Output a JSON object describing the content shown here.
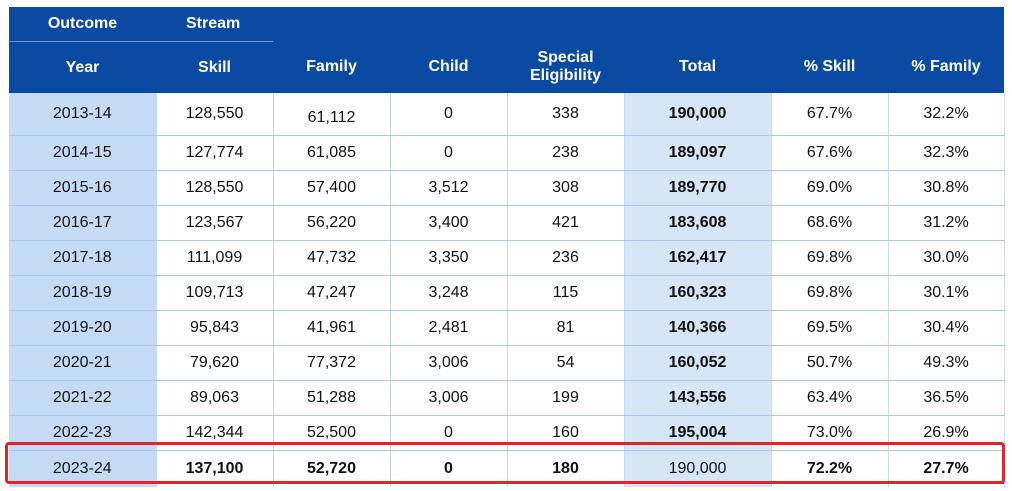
{
  "header": {
    "outcome": "Outcome",
    "stream": "Stream",
    "columns": [
      "Year",
      "Skill",
      "Family",
      "Child",
      "Special Eligibility",
      "Total",
      "% Skill",
      "% Family"
    ]
  },
  "rows": [
    {
      "year": "2013-14",
      "skill": "128,550",
      "family": "61,112",
      "child": "0",
      "special": "338",
      "total": "190,000",
      "pct_skill": "67.7%",
      "pct_family": "32.2%"
    },
    {
      "year": "2014-15",
      "skill": "127,774",
      "family": "61,085",
      "child": "0",
      "special": "238",
      "total": "189,097",
      "pct_skill": "67.6%",
      "pct_family": "32.3%"
    },
    {
      "year": "2015-16",
      "skill": "128,550",
      "family": "57,400",
      "child": "3,512",
      "special": "308",
      "total": "189,770",
      "pct_skill": "69.0%",
      "pct_family": "30.8%"
    },
    {
      "year": "2016-17",
      "skill": "123,567",
      "family": "56,220",
      "child": "3,400",
      "special": "421",
      "total": "183,608",
      "pct_skill": "68.6%",
      "pct_family": "31.2%"
    },
    {
      "year": "2017-18",
      "skill": "111,099",
      "family": "47,732",
      "child": "3,350",
      "special": "236",
      "total": "162,417",
      "pct_skill": "69.8%",
      "pct_family": "30.0%"
    },
    {
      "year": "2018-19",
      "skill": "109,713",
      "family": "47,247",
      "child": "3,248",
      "special": "115",
      "total": "160,323",
      "pct_skill": "69.8%",
      "pct_family": "30.1%"
    },
    {
      "year": "2019-20",
      "skill": "95,843",
      "family": "41,961",
      "child": "2,481",
      "special": "81",
      "total": "140,366",
      "pct_skill": "69.5%",
      "pct_family": "30.4%"
    },
    {
      "year": "2020-21",
      "skill": "79,620",
      "family": "77,372",
      "child": "3,006",
      "special": "54",
      "total": "160,052",
      "pct_skill": "50.7%",
      "pct_family": "49.3%"
    },
    {
      "year": "2021-22",
      "skill": "89,063",
      "family": "51,288",
      "child": "3,006",
      "special": "199",
      "total": "143,556",
      "pct_skill": "63.4%",
      "pct_family": "36.5%"
    },
    {
      "year": "2022-23",
      "skill": "142,344",
      "family": "52,500",
      "child": "0",
      "special": "160",
      "total": "195,004",
      "pct_skill": "73.0%",
      "pct_family": "26.9%"
    },
    {
      "year": "2023-24",
      "skill": "137,100",
      "family": "52,720",
      "child": "0",
      "special": "180",
      "total": "190,000",
      "pct_skill": "72.2%",
      "pct_family": "27.7%"
    }
  ],
  "colors": {
    "header_bg": "#0a4aa3",
    "year_bg": "#c4daf5",
    "total_bg": "#d6e6f7",
    "highlight_border": "#e0242a"
  }
}
